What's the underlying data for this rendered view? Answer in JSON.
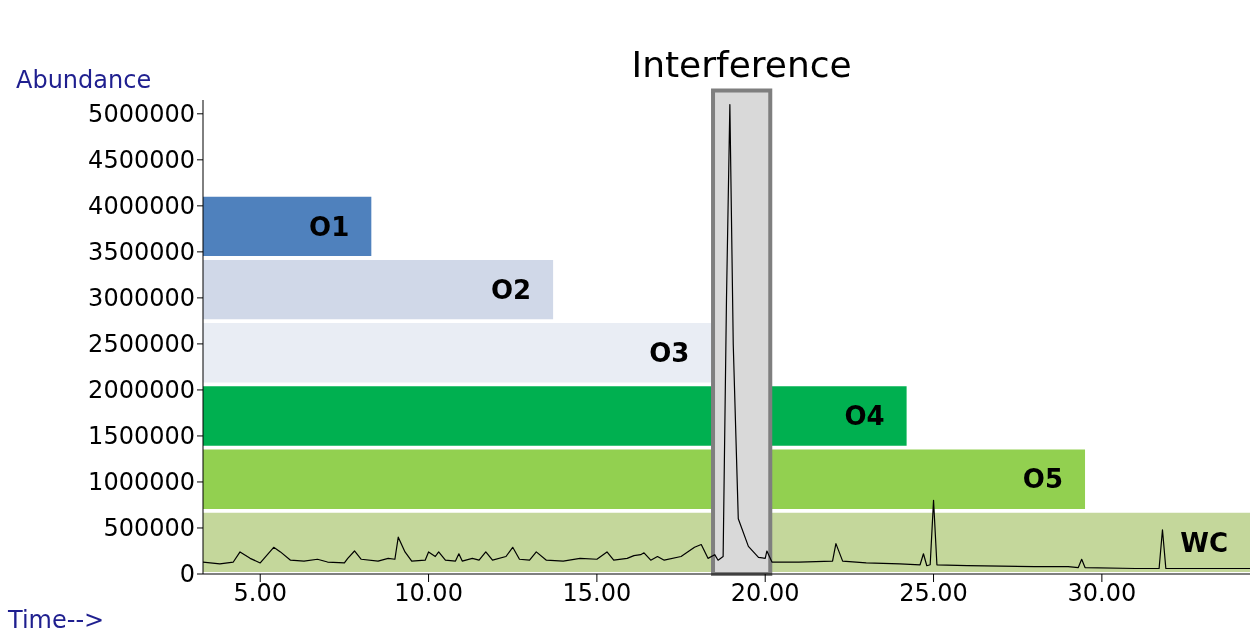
{
  "chart_data": {
    "type": "line",
    "xlabel": "Time-->",
    "ylabel": "Abundance",
    "color": "#000000",
    "x": [
      3.3,
      3.8,
      4.2,
      4.4,
      4.7,
      5.0,
      5.4,
      5.6,
      5.9,
      6.3,
      6.7,
      7.0,
      7.5,
      7.6,
      7.8,
      8.0,
      8.5,
      8.8,
      9.0,
      9.1,
      9.3,
      9.5,
      9.9,
      10.0,
      10.2,
      10.3,
      10.5,
      10.8,
      10.9,
      11.0,
      11.3,
      11.5,
      11.7,
      11.9,
      12.3,
      12.5,
      12.7,
      13.0,
      13.2,
      13.5,
      14.0,
      14.5,
      15.0,
      15.3,
      15.5,
      15.9,
      16.1,
      16.3,
      16.4,
      16.6,
      16.8,
      17.0,
      17.5,
      17.9,
      18.1,
      18.3,
      18.5,
      18.6,
      18.75,
      18.85,
      18.95,
      19.05,
      19.2,
      19.5,
      19.8,
      20.0,
      20.05,
      20.2,
      21.0,
      22.0,
      22.1,
      22.3,
      23.0,
      24.0,
      24.6,
      24.7,
      24.8,
      24.9,
      25.0,
      25.1,
      26.0,
      28.0,
      29.0,
      29.3,
      29.4,
      29.5,
      31.0,
      31.7,
      31.8,
      31.9,
      34.4
    ],
    "values": [
      130000,
      110000,
      130000,
      240000,
      170000,
      120000,
      290000,
      240000,
      150000,
      140000,
      160000,
      130000,
      120000,
      170000,
      250000,
      160000,
      140000,
      170000,
      160000,
      400000,
      240000,
      140000,
      150000,
      240000,
      190000,
      240000,
      150000,
      140000,
      220000,
      140000,
      170000,
      150000,
      240000,
      150000,
      190000,
      290000,
      160000,
      150000,
      240000,
      150000,
      140000,
      170000,
      160000,
      240000,
      150000,
      170000,
      200000,
      210000,
      230000,
      150000,
      190000,
      150000,
      190000,
      290000,
      320000,
      170000,
      210000,
      150000,
      190000,
      3000000,
      5100000,
      2500000,
      600000,
      300000,
      180000,
      170000,
      250000,
      130000,
      130000,
      140000,
      330000,
      140000,
      120000,
      110000,
      100000,
      220000,
      90000,
      100000,
      800000,
      100000,
      90000,
      80000,
      80000,
      70000,
      160000,
      70000,
      60000,
      60000,
      480000,
      60000,
      60000
    ],
    "xlim": [
      3.3,
      34.4
    ],
    "ylim": [
      0,
      5150000
    ],
    "xticks": [
      {
        "value": 5,
        "label": "5.00"
      },
      {
        "value": 10,
        "label": "10.00"
      },
      {
        "value": 15,
        "label": "15.00"
      },
      {
        "value": 20,
        "label": "20.00"
      },
      {
        "value": 25,
        "label": "25.00"
      },
      {
        "value": 30,
        "label": "30.00"
      }
    ],
    "yticks": [
      0,
      500000,
      1000000,
      1500000,
      2000000,
      2500000,
      3000000,
      3500000,
      4000000,
      4500000,
      5000000
    ],
    "bands": [
      {
        "axis": "x",
        "from": 3.3,
        "to": 8.3,
        "label": "O1",
        "color": "#4f81bd"
      },
      {
        "axis": "x",
        "from": 3.3,
        "to": 13.7,
        "label": "O2",
        "color": "#d0d8e8"
      },
      {
        "axis": "x",
        "from": 3.3,
        "to": 18.4,
        "label": "O3",
        "color": "#e9edf4"
      },
      {
        "axis": "x",
        "from": 3.3,
        "to": 24.2,
        "label": "O4",
        "color": "#00b050"
      },
      {
        "axis": "x",
        "from": 3.3,
        "to": 29.5,
        "label": "O5",
        "color": "#92d050"
      },
      {
        "axis": "x",
        "from": 3.3,
        "to": 34.4,
        "label": "WC",
        "color": "#c4d79b"
      },
      {
        "axis": "x",
        "from": 18.45,
        "to": 20.15,
        "label": "Interference",
        "color": "#d9d9d9"
      }
    ]
  }
}
